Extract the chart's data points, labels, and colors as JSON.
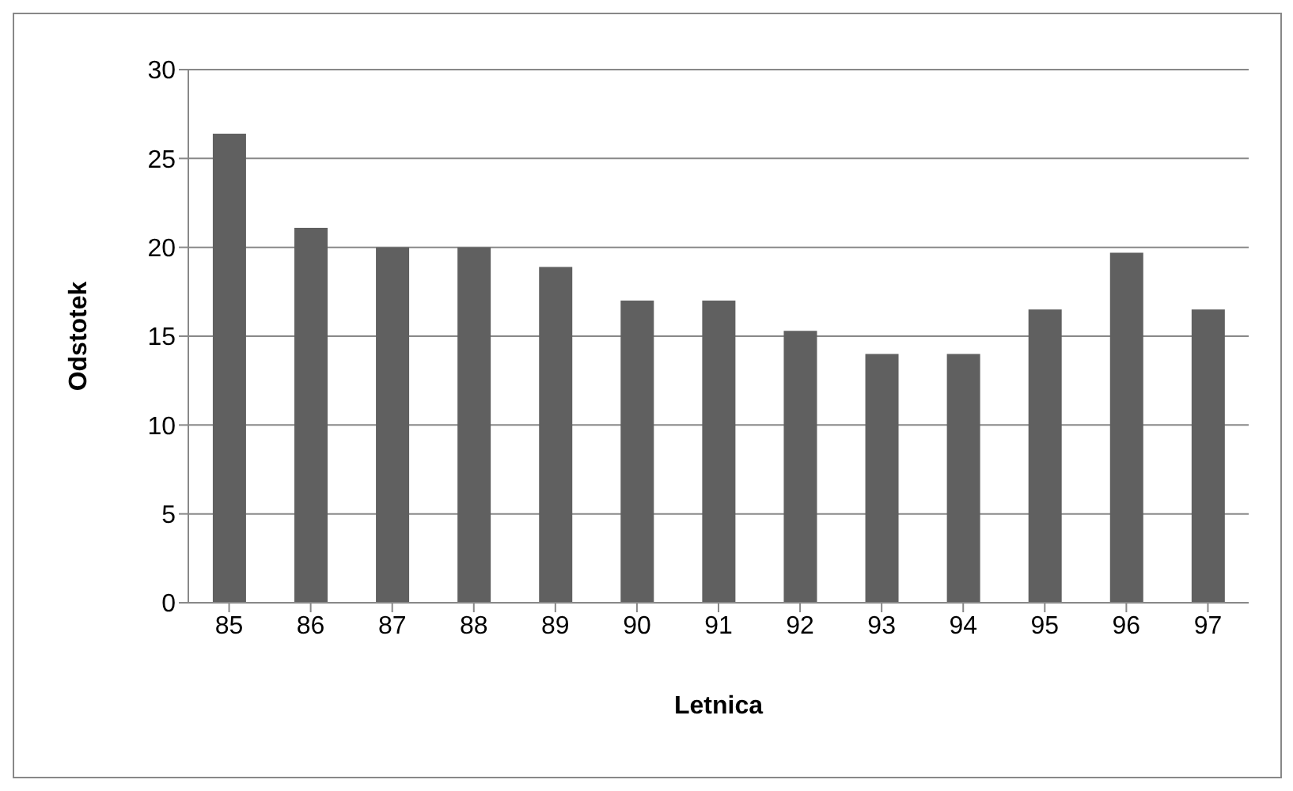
{
  "chart_data": {
    "type": "bar",
    "xlabel": "Letnica",
    "ylabel": "Odstotek",
    "categories": [
      "85",
      "86",
      "87",
      "88",
      "89",
      "90",
      "91",
      "92",
      "93",
      "94",
      "95",
      "96",
      "97"
    ],
    "values": [
      26.4,
      21.1,
      20.0,
      20.0,
      18.9,
      17.0,
      17.0,
      15.3,
      14.0,
      14.0,
      16.5,
      19.7,
      16.5
    ],
    "color": "#606060",
    "ylim": [
      0,
      30
    ],
    "yticks": [
      0,
      5,
      10,
      15,
      20,
      25,
      30
    ],
    "grid": "y"
  }
}
